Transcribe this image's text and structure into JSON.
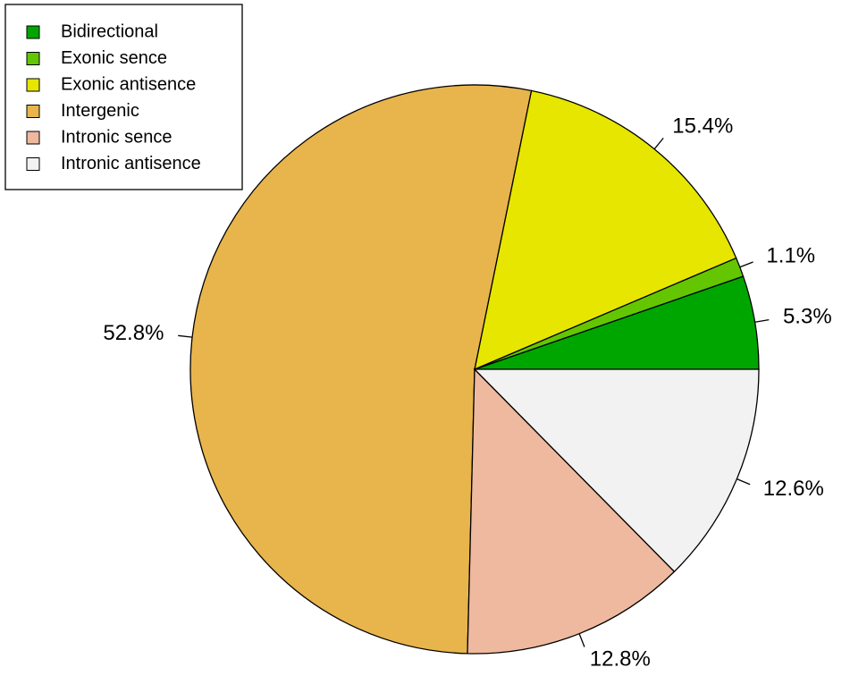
{
  "chart_data": {
    "type": "pie",
    "categories": [
      "Bidirectional",
      "Exonic sence",
      "Exonic antisence",
      "Intergenic",
      "Intronic sence",
      "Intronic antisence"
    ],
    "values": [
      5.3,
      1.1,
      15.4,
      52.8,
      12.8,
      12.6
    ],
    "value_labels": [
      "5.3%",
      "1.1%",
      "15.4%",
      "52.8%",
      "12.8%",
      "12.6%"
    ],
    "colors": [
      "#00a600",
      "#63c600",
      "#e6e600",
      "#e8b44c",
      "#eeb99f",
      "#f2f2f2"
    ],
    "legend": "topleft"
  }
}
